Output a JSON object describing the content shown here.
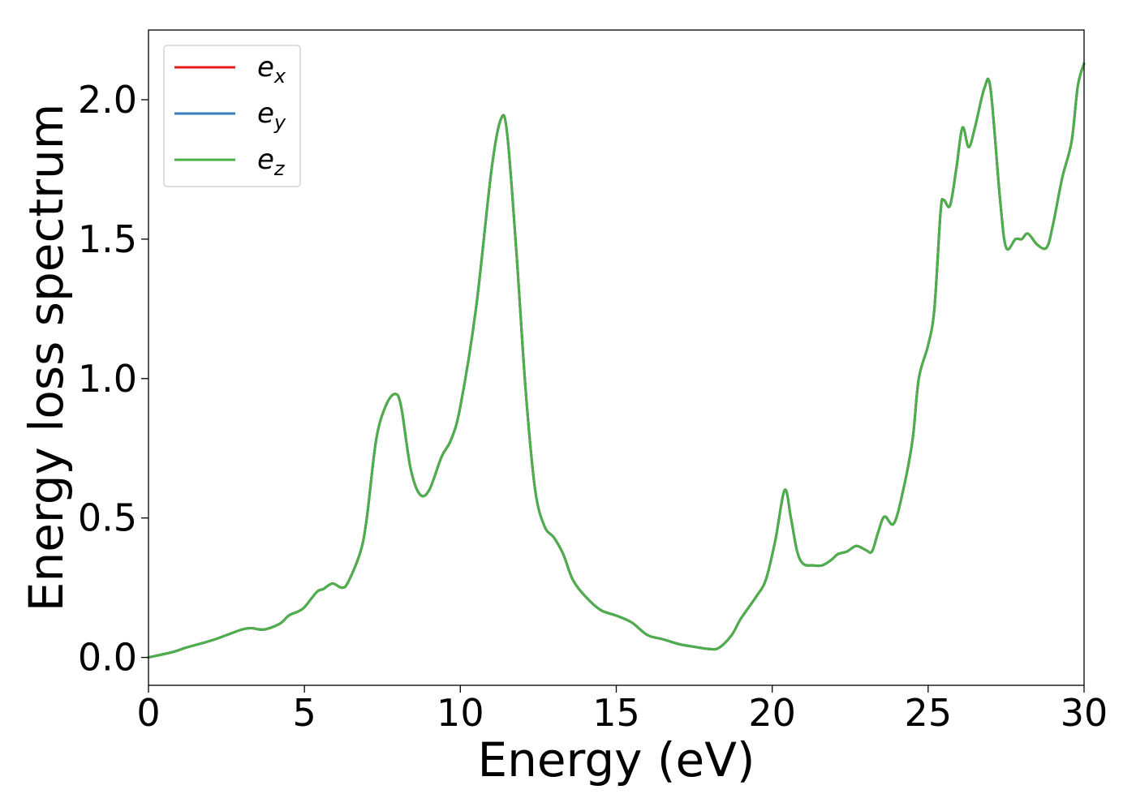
{
  "chart_data": {
    "type": "line",
    "title": "",
    "xlabel": "Energy (eV)",
    "ylabel": "Energy loss spectrum",
    "xlim": [
      0,
      30
    ],
    "ylim": [
      -0.1,
      2.25
    ],
    "xticks": [
      "0",
      "5",
      "10",
      "15",
      "20",
      "25",
      "30"
    ],
    "yticks": [
      "0.0",
      "0.5",
      "1.0",
      "1.5",
      "2.0"
    ],
    "grid": false,
    "legend_position": "top-left",
    "x": [
      0,
      0.8,
      1.2,
      2.0,
      2.5,
      3.0,
      3.3,
      3.7,
      4.2,
      4.5,
      4.8,
      5.0,
      5.4,
      5.6,
      5.9,
      6.2,
      6.4,
      6.8,
      7.0,
      7.3,
      7.6,
      7.9,
      8.1,
      8.4,
      8.7,
      9.0,
      9.4,
      9.7,
      10.0,
      10.5,
      11.0,
      11.3,
      11.5,
      11.8,
      12.1,
      12.4,
      12.7,
      13.0,
      13.3,
      13.6,
      14.0,
      14.5,
      15.0,
      15.5,
      16.0,
      16.5,
      17.0,
      17.5,
      18.0,
      18.3,
      18.7,
      19.0,
      19.5,
      19.8,
      20.1,
      20.4,
      20.6,
      20.8,
      21.0,
      21.3,
      21.6,
      21.9,
      22.1,
      22.4,
      22.7,
      23.0,
      23.2,
      23.4,
      23.6,
      23.9,
      24.2,
      24.5,
      24.7,
      25.0,
      25.2,
      25.4,
      25.5,
      25.7,
      25.9,
      26.1,
      26.3,
      26.5,
      26.8,
      27.0,
      27.3,
      27.5,
      27.8,
      28.0,
      28.2,
      28.5,
      28.8,
      29.0,
      29.3,
      29.6,
      29.8,
      30.0
    ],
    "series": [
      {
        "name": "e_x",
        "color": "#e41a1c",
        "values": [
          0.0,
          0.02,
          0.035,
          0.06,
          0.08,
          0.1,
          0.105,
          0.1,
          0.12,
          0.15,
          0.165,
          0.18,
          0.235,
          0.245,
          0.265,
          0.25,
          0.27,
          0.38,
          0.5,
          0.78,
          0.9,
          0.945,
          0.9,
          0.68,
          0.585,
          0.6,
          0.72,
          0.78,
          0.9,
          1.25,
          1.75,
          1.93,
          1.88,
          1.45,
          0.95,
          0.6,
          0.47,
          0.43,
          0.37,
          0.28,
          0.22,
          0.17,
          0.15,
          0.125,
          0.08,
          0.065,
          0.048,
          0.038,
          0.03,
          0.035,
          0.08,
          0.14,
          0.22,
          0.28,
          0.42,
          0.6,
          0.5,
          0.38,
          0.335,
          0.33,
          0.33,
          0.35,
          0.37,
          0.38,
          0.4,
          0.385,
          0.38,
          0.45,
          0.505,
          0.48,
          0.6,
          0.78,
          1.0,
          1.12,
          1.25,
          1.6,
          1.64,
          1.62,
          1.75,
          1.9,
          1.83,
          1.9,
          2.04,
          2.04,
          1.65,
          1.47,
          1.5,
          1.5,
          1.52,
          1.48,
          1.47,
          1.55,
          1.72,
          1.85,
          2.05,
          2.13
        ]
      },
      {
        "name": "e_y",
        "color": "#377eb8",
        "values": [
          0.0,
          0.02,
          0.035,
          0.06,
          0.08,
          0.1,
          0.105,
          0.1,
          0.12,
          0.15,
          0.165,
          0.18,
          0.235,
          0.245,
          0.265,
          0.25,
          0.27,
          0.38,
          0.5,
          0.78,
          0.9,
          0.945,
          0.9,
          0.68,
          0.585,
          0.6,
          0.72,
          0.78,
          0.9,
          1.25,
          1.75,
          1.93,
          1.88,
          1.45,
          0.95,
          0.6,
          0.47,
          0.43,
          0.37,
          0.28,
          0.22,
          0.17,
          0.15,
          0.125,
          0.08,
          0.065,
          0.048,
          0.038,
          0.03,
          0.035,
          0.08,
          0.14,
          0.22,
          0.28,
          0.42,
          0.6,
          0.5,
          0.38,
          0.335,
          0.33,
          0.33,
          0.35,
          0.37,
          0.38,
          0.4,
          0.385,
          0.38,
          0.45,
          0.505,
          0.48,
          0.6,
          0.78,
          1.0,
          1.12,
          1.25,
          1.6,
          1.64,
          1.62,
          1.75,
          1.9,
          1.83,
          1.9,
          2.04,
          2.04,
          1.65,
          1.47,
          1.5,
          1.5,
          1.52,
          1.48,
          1.47,
          1.55,
          1.72,
          1.85,
          2.05,
          2.13
        ]
      },
      {
        "name": "e_z",
        "color": "#4daf4a",
        "values": [
          0.0,
          0.02,
          0.035,
          0.06,
          0.08,
          0.1,
          0.105,
          0.1,
          0.12,
          0.15,
          0.165,
          0.18,
          0.235,
          0.245,
          0.265,
          0.25,
          0.27,
          0.38,
          0.5,
          0.78,
          0.9,
          0.945,
          0.9,
          0.68,
          0.585,
          0.6,
          0.72,
          0.78,
          0.9,
          1.25,
          1.75,
          1.93,
          1.88,
          1.45,
          0.95,
          0.6,
          0.47,
          0.43,
          0.37,
          0.28,
          0.22,
          0.17,
          0.15,
          0.125,
          0.08,
          0.065,
          0.048,
          0.038,
          0.03,
          0.035,
          0.08,
          0.14,
          0.22,
          0.28,
          0.42,
          0.6,
          0.5,
          0.38,
          0.335,
          0.33,
          0.33,
          0.35,
          0.37,
          0.38,
          0.4,
          0.385,
          0.38,
          0.45,
          0.505,
          0.48,
          0.6,
          0.78,
          1.0,
          1.12,
          1.25,
          1.6,
          1.64,
          1.62,
          1.75,
          1.9,
          1.83,
          1.9,
          2.04,
          2.04,
          1.65,
          1.47,
          1.5,
          1.5,
          1.52,
          1.48,
          1.47,
          1.55,
          1.72,
          1.85,
          2.05,
          2.13
        ]
      }
    ],
    "legend": [
      {
        "base": "e",
        "sub": "x",
        "color": "#e41a1c"
      },
      {
        "base": "e",
        "sub": "y",
        "color": "#377eb8"
      },
      {
        "base": "e",
        "sub": "z",
        "color": "#4daf4a"
      }
    ]
  }
}
